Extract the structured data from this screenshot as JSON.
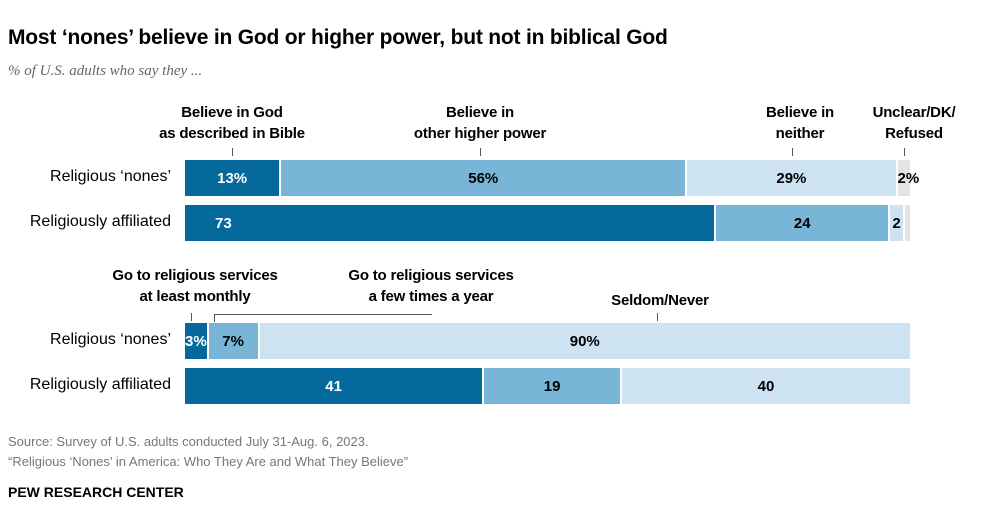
{
  "title": "Most ‘nones’ believe in God or higher power, but not in biblical God",
  "subtitle": "% of U.S. adults who say they ...",
  "chart_data": [
    {
      "type": "stacked-bar",
      "orientation": "horizontal",
      "categories": [
        "Religious ‘nones’",
        "Religiously affiliated"
      ],
      "series": [
        {
          "name": "Believe in God as described in Bible",
          "values": [
            13,
            73
          ],
          "labels": [
            "13%",
            "73"
          ],
          "color": "#05699b"
        },
        {
          "name": "Believe in other higher power",
          "values": [
            56,
            24
          ],
          "labels": [
            "56%",
            "24"
          ],
          "color": "#78b5d6"
        },
        {
          "name": "Believe in neither",
          "values": [
            29,
            2
          ],
          "labels": [
            "29%",
            "2"
          ],
          "color": "#cde3f1"
        },
        {
          "name": "Unclear/DK/ Refused",
          "values": [
            2,
            1
          ],
          "labels": [
            "2%",
            ""
          ],
          "color": "#e4e4e4"
        }
      ],
      "xlim": [
        0,
        100
      ]
    },
    {
      "type": "stacked-bar",
      "orientation": "horizontal",
      "categories": [
        "Religious ‘nones’",
        "Religiously affiliated"
      ],
      "series": [
        {
          "name": "Go to religious services at least monthly",
          "values": [
            3,
            41
          ],
          "labels": [
            "3%",
            "41"
          ],
          "color": "#05699b"
        },
        {
          "name": "Go to religious services a few times a year",
          "values": [
            7,
            19
          ],
          "labels": [
            "7%",
            "19"
          ],
          "color": "#78b5d6"
        },
        {
          "name": "Seldom/Never",
          "values": [
            90,
            40
          ],
          "labels": [
            "90%",
            "40"
          ],
          "color": "#cde3f1"
        }
      ],
      "xlim": [
        0,
        100
      ]
    }
  ],
  "headers_top": [
    "Believe in God",
    "as described in Bible",
    "Believe in",
    "other higher power",
    "Believe in",
    "neither",
    "Unclear/DK/",
    "Refused"
  ],
  "headers_bottom": [
    "Go to religious services",
    "at least monthly",
    "Go to religious services",
    "a few times a year",
    "Seldom/Never"
  ],
  "source": [
    "Source: Survey of U.S. adults conducted July 31-Aug. 6, 2023.",
    "“Religious ‘Nones’ in America: Who They Are and What They Believe”"
  ],
  "brand": "PEW RESEARCH CENTER"
}
